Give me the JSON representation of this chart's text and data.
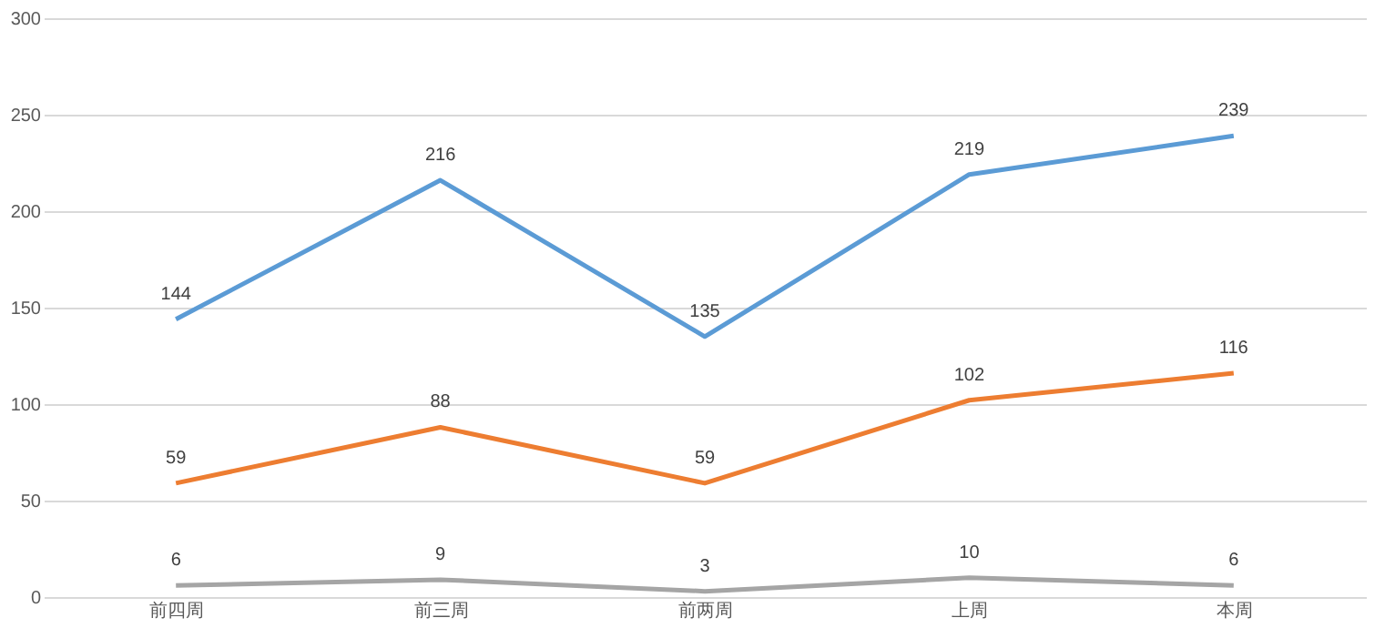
{
  "chart_data": {
    "type": "line",
    "categories": [
      "前四周",
      "前三周",
      "前两周",
      "上周",
      "本周"
    ],
    "series": [
      {
        "color": "#5b9bd5",
        "values": [
          144,
          216,
          135,
          219,
          239
        ]
      },
      {
        "color": "#ed7d31",
        "values": [
          59,
          88,
          59,
          102,
          116
        ]
      },
      {
        "color": "#a5a5a5",
        "values": [
          6,
          9,
          3,
          10,
          6
        ]
      }
    ],
    "ylim": [
      0,
      300
    ],
    "yticks": [
      0,
      50,
      100,
      150,
      200,
      250,
      300
    ],
    "grid": "y",
    "data_labels": true,
    "marker": "none",
    "line_style": "solid",
    "legend": false
  }
}
